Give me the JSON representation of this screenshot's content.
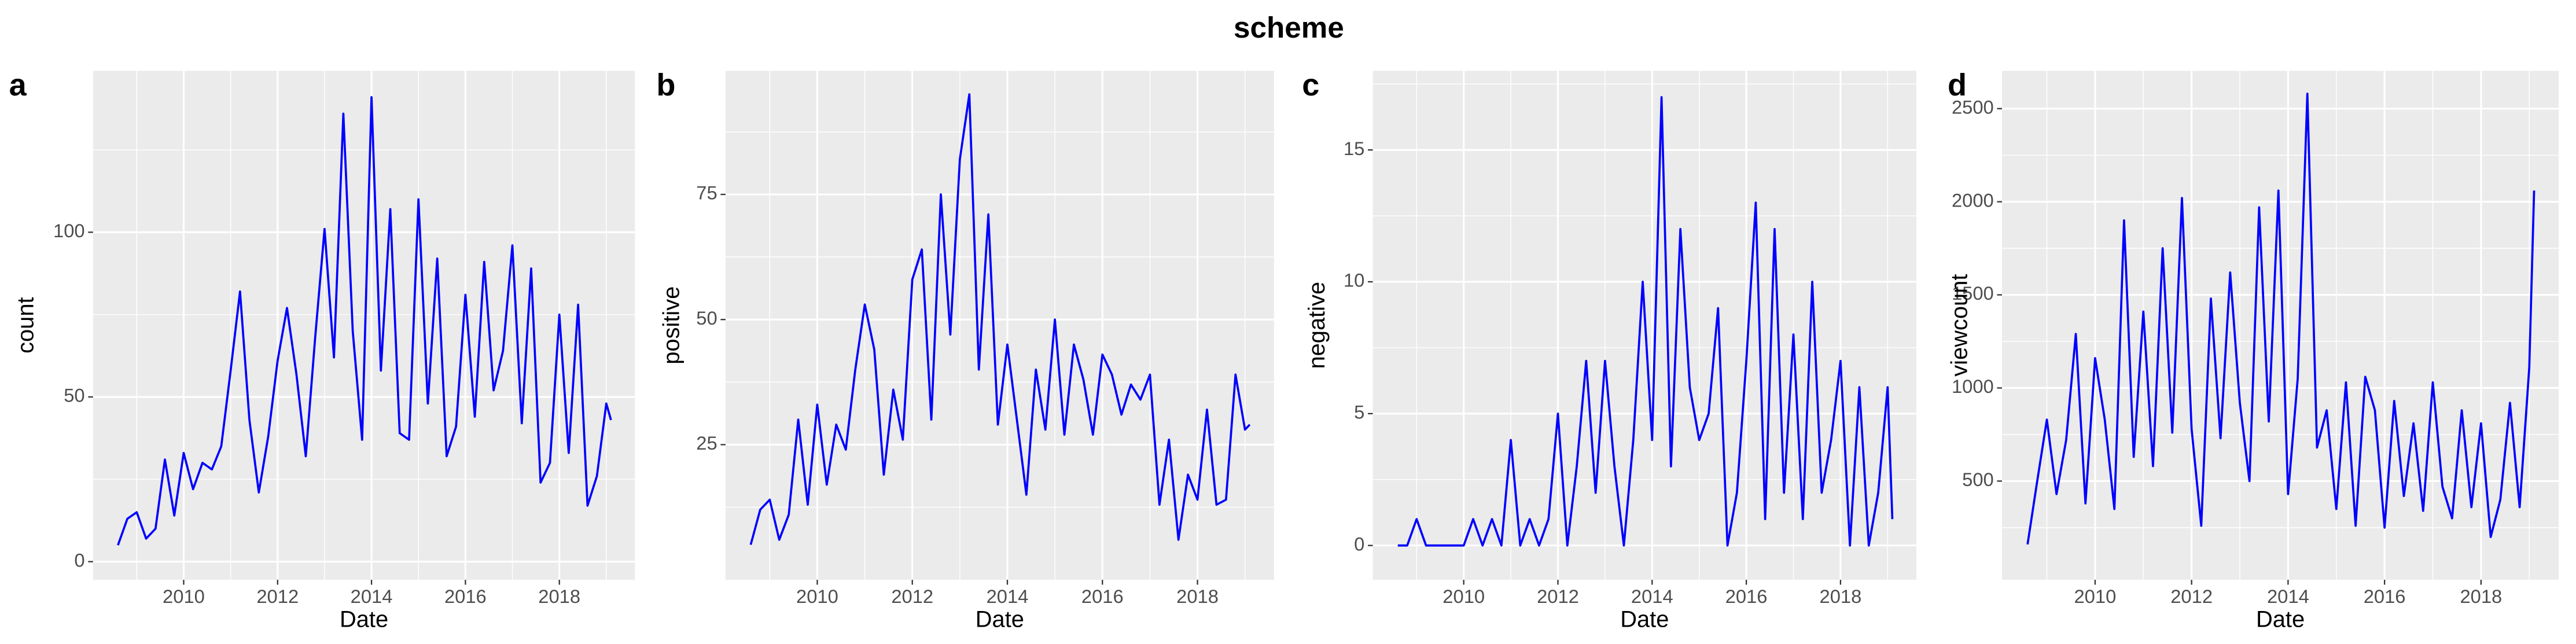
{
  "title": "scheme",
  "chart_data": [
    {
      "type": "line",
      "panel_label": "a",
      "xlabel": "Date",
      "ylabel": "count",
      "color": "#0000ff",
      "x": [
        2008.6,
        2008.8,
        2009.0,
        2009.2,
        2009.4,
        2009.6,
        2009.8,
        2010.0,
        2010.2,
        2010.4,
        2010.6,
        2010.8,
        2011.0,
        2011.2,
        2011.4,
        2011.6,
        2011.8,
        2012.0,
        2012.2,
        2012.4,
        2012.6,
        2012.8,
        2013.0,
        2013.2,
        2013.4,
        2013.6,
        2013.8,
        2014.0,
        2014.2,
        2014.4,
        2014.6,
        2014.8,
        2015.0,
        2015.2,
        2015.4,
        2015.6,
        2015.8,
        2016.0,
        2016.2,
        2016.4,
        2016.6,
        2016.8,
        2017.0,
        2017.2,
        2017.4,
        2017.6,
        2017.8,
        2018.0,
        2018.2,
        2018.4,
        2018.6,
        2018.8,
        2019.0,
        2019.1
      ],
      "values": [
        5,
        13,
        15,
        7,
        10,
        31,
        14,
        33,
        22,
        30,
        28,
        35,
        58,
        82,
        43,
        21,
        38,
        61,
        77,
        57,
        32,
        68,
        101,
        62,
        136,
        70,
        37,
        141,
        58,
        107,
        39,
        37,
        110,
        48,
        92,
        32,
        41,
        81,
        44,
        91,
        52,
        64,
        96,
        42,
        89,
        24,
        30,
        75,
        33,
        78,
        17,
        26,
        48,
        43
      ],
      "xlim": [
        2008.07,
        2019.61
      ],
      "xticks": [
        2010,
        2012,
        2014,
        2016,
        2018
      ],
      "ylim": [
        -5.5,
        149
      ],
      "yticks": [
        0,
        50,
        100
      ],
      "grid": true
    },
    {
      "type": "line",
      "panel_label": "b",
      "xlabel": "Date",
      "ylabel": "positive",
      "color": "#0000ff",
      "x": [
        2008.6,
        2008.8,
        2009.0,
        2009.2,
        2009.4,
        2009.6,
        2009.8,
        2010.0,
        2010.2,
        2010.4,
        2010.6,
        2010.8,
        2011.0,
        2011.2,
        2011.4,
        2011.6,
        2011.8,
        2012.0,
        2012.2,
        2012.4,
        2012.6,
        2012.8,
        2013.0,
        2013.2,
        2013.4,
        2013.6,
        2013.8,
        2014.0,
        2014.2,
        2014.4,
        2014.6,
        2014.8,
        2015.0,
        2015.2,
        2015.4,
        2015.6,
        2015.8,
        2016.0,
        2016.2,
        2016.4,
        2016.6,
        2016.8,
        2017.0,
        2017.2,
        2017.4,
        2017.6,
        2017.8,
        2018.0,
        2018.2,
        2018.4,
        2018.6,
        2018.8,
        2019.0,
        2019.1
      ],
      "values": [
        5,
        12,
        14,
        6,
        11,
        30,
        13,
        33,
        17,
        29,
        24,
        40,
        53,
        44,
        19,
        36,
        26,
        58,
        64,
        30,
        75,
        47,
        82,
        95,
        40,
        71,
        29,
        45,
        30,
        15,
        40,
        28,
        50,
        27,
        45,
        38,
        27,
        43,
        39,
        31,
        37,
        34,
        39,
        13,
        26,
        6,
        19,
        14,
        32,
        13,
        14,
        39,
        28,
        29
      ],
      "xlim": [
        2008.07,
        2019.61
      ],
      "xticks": [
        2010,
        2012,
        2014,
        2016,
        2018
      ],
      "ylim": [
        -2,
        99.7
      ],
      "yticks": [
        25,
        50,
        75
      ],
      "grid": true
    },
    {
      "type": "line",
      "panel_label": "c",
      "xlabel": "Date",
      "ylabel": "negative",
      "color": "#0000ff",
      "x": [
        2008.6,
        2008.8,
        2009.0,
        2009.2,
        2009.4,
        2009.6,
        2009.8,
        2010.0,
        2010.2,
        2010.4,
        2010.6,
        2010.8,
        2011.0,
        2011.2,
        2011.4,
        2011.6,
        2011.8,
        2012.0,
        2012.2,
        2012.4,
        2012.6,
        2012.8,
        2013.0,
        2013.2,
        2013.4,
        2013.6,
        2013.8,
        2014.0,
        2014.2,
        2014.4,
        2014.6,
        2014.8,
        2015.0,
        2015.2,
        2015.4,
        2015.6,
        2015.8,
        2016.0,
        2016.2,
        2016.4,
        2016.6,
        2016.8,
        2017.0,
        2017.2,
        2017.4,
        2017.6,
        2017.8,
        2018.0,
        2018.2,
        2018.4,
        2018.6,
        2018.8,
        2019.0,
        2019.1
      ],
      "values": [
        0,
        0,
        1,
        0,
        0,
        0,
        0,
        0,
        1,
        0,
        1,
        0,
        4,
        0,
        1,
        0,
        1,
        5,
        0,
        3,
        7,
        2,
        7,
        3,
        0,
        4,
        10,
        4,
        17,
        3,
        12,
        6,
        4,
        5,
        9,
        0,
        2,
        7,
        13,
        1,
        12,
        2,
        8,
        1,
        10,
        2,
        4,
        7,
        0,
        6,
        0,
        2,
        6,
        1
      ],
      "xlim": [
        2008.07,
        2019.61
      ],
      "xticks": [
        2010,
        2012,
        2014,
        2016,
        2018
      ],
      "ylim": [
        -1.3,
        18
      ],
      "yticks": [
        0,
        5,
        10,
        15
      ],
      "grid": true
    },
    {
      "type": "line",
      "panel_label": "d",
      "xlabel": "Date",
      "ylabel": "viewcount",
      "color": "#0000ff",
      "x": [
        2008.6,
        2008.8,
        2009.0,
        2009.2,
        2009.4,
        2009.6,
        2009.8,
        2010.0,
        2010.2,
        2010.4,
        2010.6,
        2010.8,
        2011.0,
        2011.2,
        2011.4,
        2011.6,
        2011.8,
        2012.0,
        2012.2,
        2012.4,
        2012.6,
        2012.8,
        2013.0,
        2013.2,
        2013.4,
        2013.6,
        2013.8,
        2014.0,
        2014.2,
        2014.4,
        2014.6,
        2014.8,
        2015.0,
        2015.2,
        2015.4,
        2015.6,
        2015.8,
        2016.0,
        2016.2,
        2016.4,
        2016.6,
        2016.8,
        2017.0,
        2017.2,
        2017.4,
        2017.6,
        2017.8,
        2018.0,
        2018.2,
        2018.4,
        2018.6,
        2018.8,
        2019.0,
        2019.1
      ],
      "values": [
        160,
        500,
        830,
        430,
        720,
        1290,
        380,
        1160,
        830,
        350,
        1900,
        630,
        1410,
        580,
        1750,
        760,
        2020,
        780,
        260,
        1480,
        730,
        1620,
        920,
        500,
        1970,
        820,
        2060,
        430,
        1050,
        2580,
        680,
        880,
        350,
        1030,
        260,
        1060,
        880,
        250,
        930,
        420,
        810,
        340,
        1030,
        470,
        300,
        880,
        360,
        810,
        200,
        400,
        920,
        360,
        1110,
        2060
      ],
      "xlim": [
        2008.07,
        2019.61
      ],
      "xticks": [
        2010,
        2012,
        2014,
        2016,
        2018
      ],
      "ylim": [
        -30,
        2703
      ],
      "yticks": [
        500,
        1000,
        1500,
        2000,
        2500
      ],
      "grid": true
    }
  ]
}
